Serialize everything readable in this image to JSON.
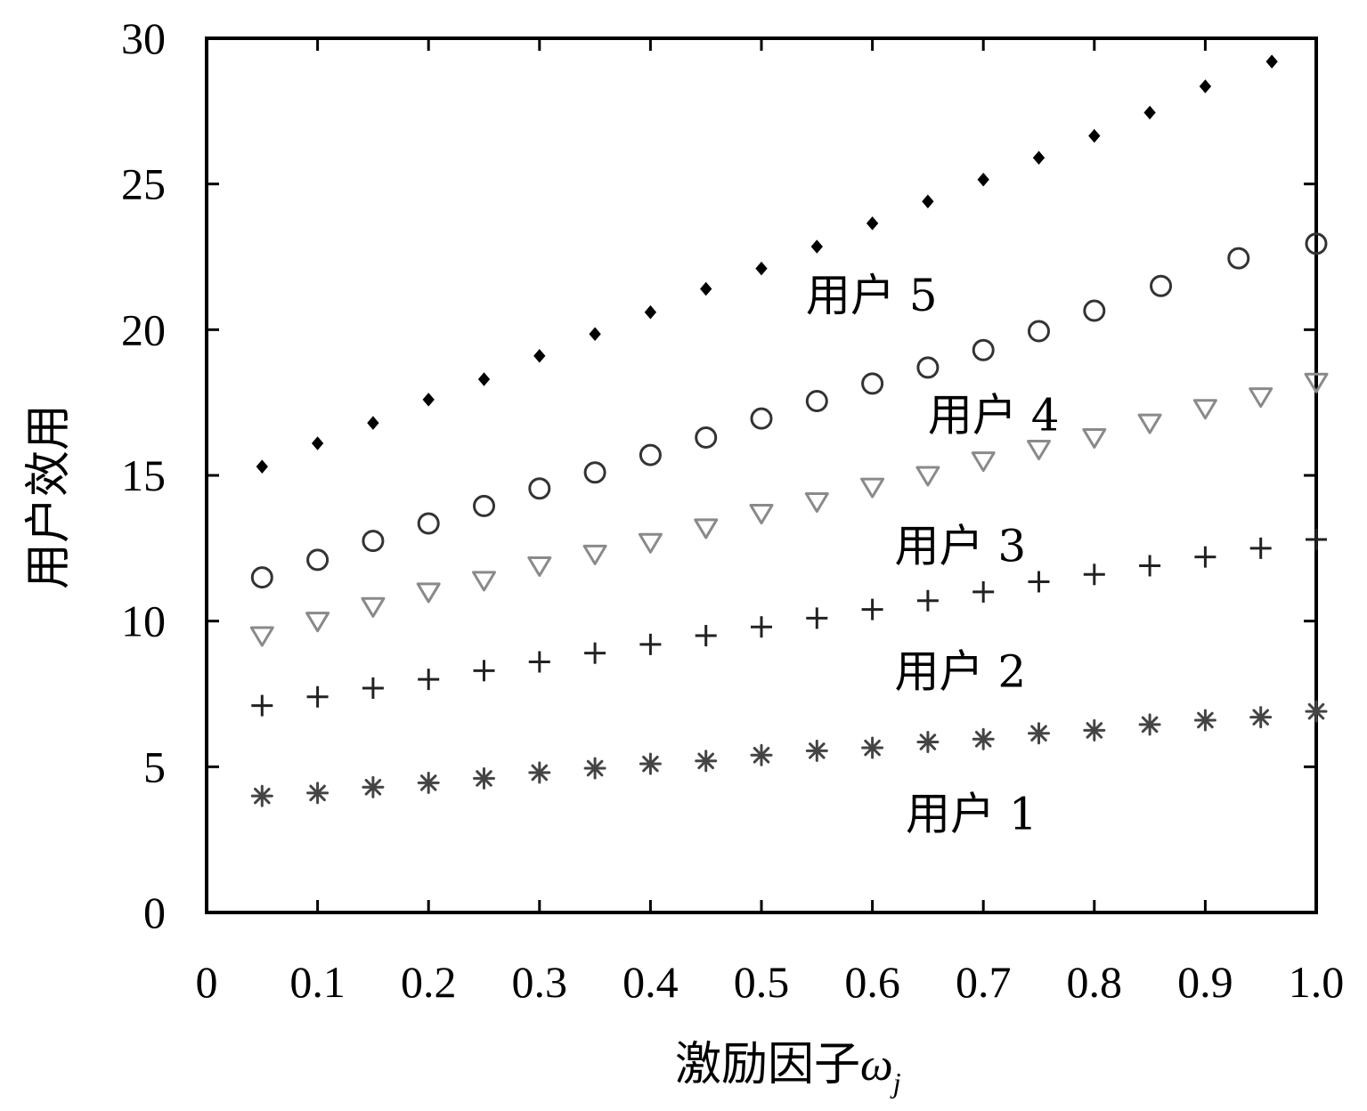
{
  "chart_data": {
    "type": "scatter",
    "title": "",
    "xlabel": "激励因子",
    "xlabel_symbol": "ω",
    "xlabel_subscript": "j",
    "ylabel": "用户效用",
    "xlim": [
      0,
      1.0
    ],
    "ylim": [
      0,
      30
    ],
    "x_ticks": [
      "0",
      "0.1",
      "0.2",
      "0.3",
      "0.4",
      "0.5",
      "0.6",
      "0.7",
      "0.8",
      "0.9",
      "1.0"
    ],
    "y_ticks": [
      "0",
      "5",
      "10",
      "15",
      "20",
      "25",
      "30"
    ],
    "grid": false,
    "legend": "none",
    "series": [
      {
        "name": "用户 1",
        "marker": "asterisk",
        "color": "#444444",
        "x": [
          0.05,
          0.1,
          0.15,
          0.2,
          0.25,
          0.3,
          0.35,
          0.4,
          0.45,
          0.5,
          0.55,
          0.6,
          0.65,
          0.7,
          0.75,
          0.8,
          0.85,
          0.9,
          0.95,
          1.0
        ],
        "values": [
          4.0,
          4.1,
          4.3,
          4.45,
          4.6,
          4.8,
          4.95,
          5.1,
          5.2,
          5.4,
          5.55,
          5.65,
          5.85,
          5.95,
          6.15,
          6.25,
          6.45,
          6.6,
          6.7,
          6.9
        ]
      },
      {
        "name": "用户 2",
        "marker": "plus",
        "color": "#222222",
        "x": [
          0.05,
          0.1,
          0.15,
          0.2,
          0.25,
          0.3,
          0.35,
          0.4,
          0.45,
          0.5,
          0.55,
          0.6,
          0.65,
          0.7,
          0.75,
          0.8,
          0.85,
          0.9,
          0.95,
          1.0
        ],
        "values": [
          7.1,
          7.4,
          7.7,
          8.0,
          8.3,
          8.6,
          8.9,
          9.2,
          9.5,
          9.8,
          10.1,
          10.4,
          10.7,
          11.0,
          11.35,
          11.6,
          11.9,
          12.2,
          12.5,
          12.8
        ]
      },
      {
        "name": "用户 3",
        "marker": "triangle-down",
        "color": "#8a8a8a",
        "x": [
          0.05,
          0.1,
          0.15,
          0.2,
          0.25,
          0.3,
          0.35,
          0.4,
          0.45,
          0.5,
          0.55,
          0.6,
          0.65,
          0.7,
          0.75,
          0.8,
          0.85,
          0.9,
          0.95,
          1.0
        ],
        "values": [
          9.5,
          10.0,
          10.5,
          11.0,
          11.4,
          11.9,
          12.3,
          12.7,
          13.2,
          13.7,
          14.1,
          14.6,
          15.0,
          15.5,
          15.9,
          16.3,
          16.8,
          17.3,
          17.7,
          18.2
        ]
      },
      {
        "name": "用户 4",
        "marker": "circle",
        "color": "#333333",
        "x": [
          0.05,
          0.1,
          0.15,
          0.2,
          0.25,
          0.3,
          0.35,
          0.4,
          0.45,
          0.5,
          0.55,
          0.6,
          0.65,
          0.7,
          0.75,
          0.8,
          0.86,
          0.93,
          1.0
        ],
        "values": [
          11.5,
          12.1,
          12.75,
          13.35,
          13.95,
          14.55,
          15.1,
          15.7,
          16.3,
          16.95,
          17.55,
          18.15,
          18.7,
          19.3,
          19.95,
          20.65,
          21.5,
          22.45,
          22.95
        ]
      },
      {
        "name": "用户 5",
        "marker": "diamond",
        "color": "#000000",
        "x": [
          0.05,
          0.1,
          0.15,
          0.2,
          0.25,
          0.3,
          0.35,
          0.4,
          0.45,
          0.5,
          0.55,
          0.6,
          0.65,
          0.7,
          0.75,
          0.8,
          0.85,
          0.9,
          0.96
        ],
        "values": [
          15.3,
          16.1,
          16.8,
          17.6,
          18.3,
          19.1,
          19.85,
          20.6,
          21.4,
          22.1,
          22.85,
          23.65,
          24.4,
          25.15,
          25.9,
          26.65,
          27.45,
          28.35,
          29.2
        ]
      }
    ],
    "annotations": [
      {
        "text": "用户 5",
        "x": 0.54,
        "y": 21.2
      },
      {
        "text": "用户 4",
        "x": 0.65,
        "y": 17.1
      },
      {
        "text": "用户 3",
        "x": 0.62,
        "y": 12.6
      },
      {
        "text": "用户 2",
        "x": 0.62,
        "y": 8.3
      },
      {
        "text": "用户 1",
        "x": 0.63,
        "y": 3.4
      }
    ]
  }
}
